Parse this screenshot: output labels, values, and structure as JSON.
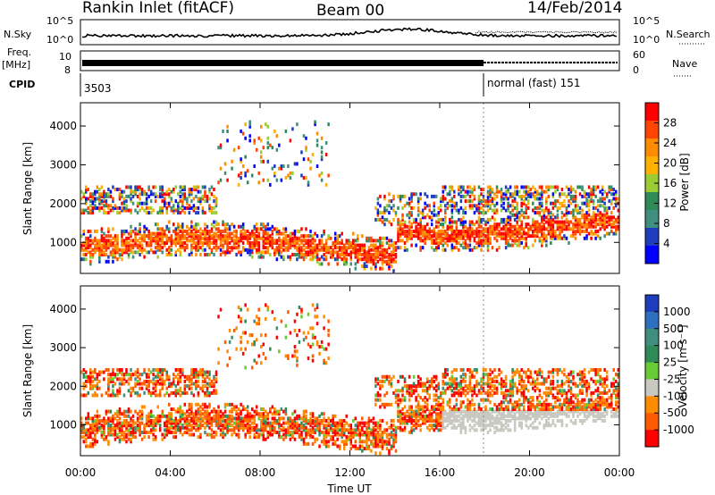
{
  "header": {
    "title": "Rankin Inlet (fitACF)",
    "beam": "Beam 00",
    "date": "14/Feb/2014"
  },
  "strip": {
    "nsky_label": "N.Sky",
    "nsky_ticks": [
      "10^5",
      "10^0"
    ],
    "nsearch_label": "N.Search",
    "nsearch_ticks": [
      "10^5",
      "10^0"
    ],
    "freq_label": "Freq.",
    "freq_unit": "[MHz]",
    "freq_ticks": [
      "10",
      "8"
    ],
    "nave_label": "Nave",
    "nave_ticks": [
      "60",
      "0"
    ],
    "cpid_label": "CPID",
    "cpid_first": "3503",
    "cpid_second": "normal (fast) 151"
  },
  "chart_data": [
    {
      "type": "heatmap",
      "name": "power",
      "ylabel": "Slant Range [km]",
      "ylim": [
        200,
        4600
      ],
      "y_ticks": [
        1000,
        2000,
        3000,
        4000
      ],
      "xlim": [
        0,
        24
      ],
      "x_ticks": [
        0,
        4,
        8,
        12,
        16,
        20,
        24
      ],
      "colorbar_label": "Power [dB]",
      "colorbar_ticks": [
        "28",
        "24",
        "20",
        "16",
        "12",
        "8",
        "4"
      ],
      "colorbar_colors": [
        "#ff0000",
        "#ff4500",
        "#ff8c00",
        "#ffb000",
        "#9acd32",
        "#2e8b57",
        "#3f8f7f",
        "#1e3cbe",
        "#0000ff"
      ],
      "grid": false
    },
    {
      "type": "heatmap",
      "name": "velocity",
      "ylabel": "Slant Range [km]",
      "ylim": [
        200,
        4600
      ],
      "y_ticks": [
        1000,
        2000,
        3000,
        4000
      ],
      "xlim": [
        0,
        24
      ],
      "x_ticks": [
        0,
        4,
        8,
        12,
        16,
        20,
        24
      ],
      "xlabel": "Time UT",
      "x_tick_labels": [
        "00:00",
        "04:00",
        "08:00",
        "12:00",
        "16:00",
        "20:00",
        "00:00"
      ],
      "colorbar_label": "Velocity [m s⁻¹]",
      "colorbar_ticks": [
        "1000",
        "500",
        "100",
        "25",
        "-25",
        "-100",
        "-500",
        "-1000"
      ],
      "colorbar_colors": [
        "#1e3cbe",
        "#2e6fbf",
        "#3f8f7f",
        "#2e8b57",
        "#66cc33",
        "#c8c8c0",
        "#ff8c00",
        "#ff5a00",
        "#ff0000"
      ],
      "grid": false
    }
  ],
  "colors": {
    "power_low": "#0000ff",
    "power_high": "#ff0000",
    "ground_scatter": "#c8c8c0"
  }
}
